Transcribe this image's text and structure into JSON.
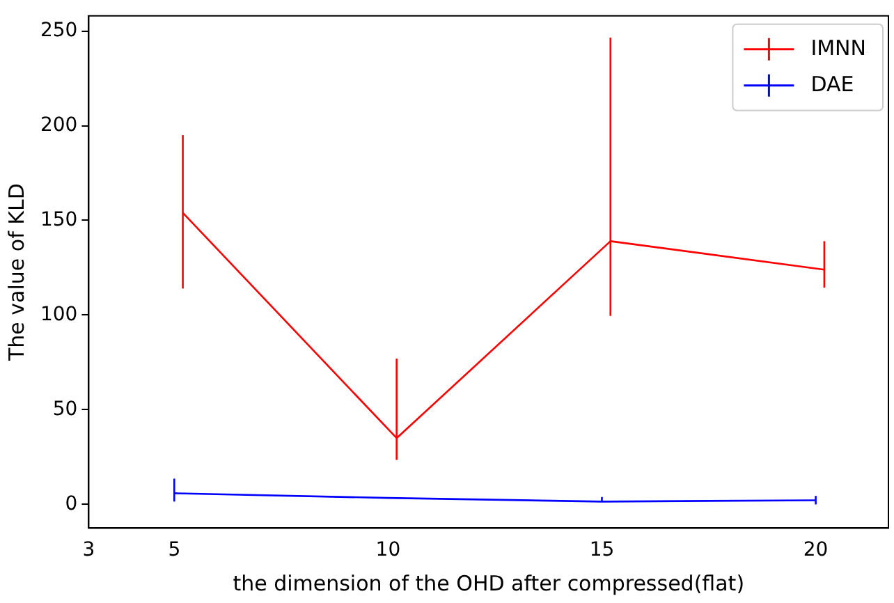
{
  "chart_data": {
    "type": "line",
    "xlabel": "the dimension of the OHD after compressed(flat)",
    "ylabel": "The value of KLD",
    "xlim": [
      3,
      21.7
    ],
    "xticks": [
      3,
      5,
      10,
      15,
      20
    ],
    "ylim": [
      -12.5,
      258
    ],
    "yticks": [
      0,
      50,
      100,
      150,
      200,
      250
    ],
    "grid": false,
    "legend": "top right",
    "marker": "none",
    "series": [
      {
        "name": "IMNN",
        "color": "#ff0000",
        "x": [
          5.2,
          10.2,
          15.2,
          20.2
        ],
        "values": [
          154,
          35,
          139,
          124
        ],
        "errors": [
          [
            114,
            195
          ],
          [
            23.5,
            77
          ],
          [
            99.5,
            246.5
          ],
          [
            114.5,
            139
          ]
        ]
      },
      {
        "name": "DAE",
        "color": "#0000ff",
        "x": [
          5,
          10,
          15,
          20
        ],
        "values": [
          5.9,
          3.4,
          1.5,
          2.2
        ],
        "errors": [
          [
            1.5,
            13.6
          ],
          null,
          [
            1.5,
            3.9
          ],
          [
            0,
            4.5
          ]
        ]
      }
    ]
  }
}
